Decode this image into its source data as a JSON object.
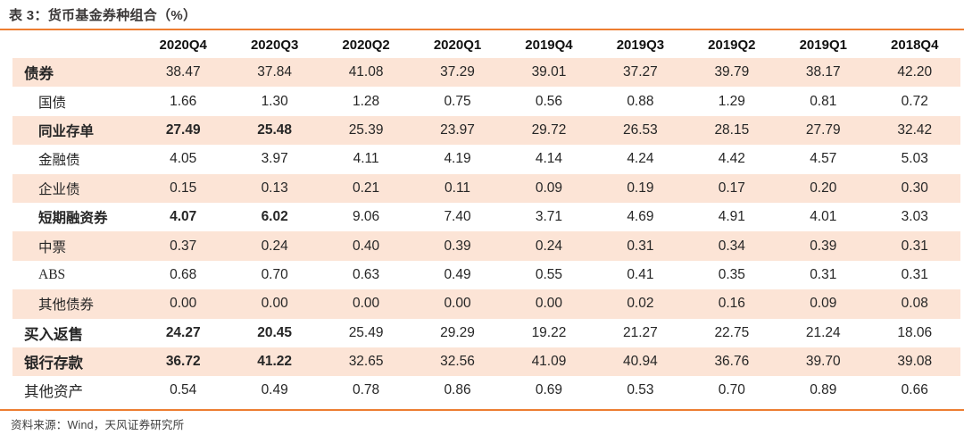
{
  "title": "表 3：货币基金券种组合（%）",
  "source_note": "资料来源：Wind，天风证券研究所",
  "colors": {
    "accent_orange": "#ED7D31",
    "row_highlight": "#FCE4D6",
    "header_text": "#111111",
    "body_text": "#262626",
    "title_text": "#3B3838"
  },
  "table": {
    "corner_label": "",
    "columns": [
      "2020Q4",
      "2020Q3",
      "2020Q2",
      "2020Q1",
      "2019Q4",
      "2019Q3",
      "2019Q2",
      "2019Q1",
      "2018Q4"
    ],
    "rows": [
      {
        "label": "债券",
        "level": "major",
        "bold_label": true,
        "serif_label": false,
        "highlight": true,
        "bold_value_count": 0,
        "values": [
          "38.47",
          "37.84",
          "41.08",
          "37.29",
          "39.01",
          "37.27",
          "39.79",
          "38.17",
          "42.20"
        ]
      },
      {
        "label": "国债",
        "level": "sub",
        "bold_label": false,
        "serif_label": false,
        "highlight": false,
        "bold_value_count": 0,
        "values": [
          "1.66",
          "1.30",
          "1.28",
          "0.75",
          "0.56",
          "0.88",
          "1.29",
          "0.81",
          "0.72"
        ]
      },
      {
        "label": "同业存单",
        "level": "sub",
        "bold_label": true,
        "serif_label": false,
        "highlight": true,
        "bold_value_count": 2,
        "values": [
          "27.49",
          "25.48",
          "25.39",
          "23.97",
          "29.72",
          "26.53",
          "28.15",
          "27.79",
          "32.42"
        ]
      },
      {
        "label": "金融债",
        "level": "sub",
        "bold_label": false,
        "serif_label": false,
        "highlight": false,
        "bold_value_count": 0,
        "values": [
          "4.05",
          "3.97",
          "4.11",
          "4.19",
          "4.14",
          "4.24",
          "4.42",
          "4.57",
          "5.03"
        ]
      },
      {
        "label": "企业债",
        "level": "sub",
        "bold_label": false,
        "serif_label": false,
        "highlight": true,
        "bold_value_count": 0,
        "values": [
          "0.15",
          "0.13",
          "0.21",
          "0.11",
          "0.09",
          "0.19",
          "0.17",
          "0.20",
          "0.30"
        ]
      },
      {
        "label": "短期融资券",
        "level": "sub",
        "bold_label": true,
        "serif_label": false,
        "highlight": false,
        "bold_value_count": 2,
        "values": [
          "4.07",
          "6.02",
          "9.06",
          "7.40",
          "3.71",
          "4.69",
          "4.91",
          "4.01",
          "3.03"
        ]
      },
      {
        "label": "中票",
        "level": "sub",
        "bold_label": false,
        "serif_label": false,
        "highlight": true,
        "bold_value_count": 0,
        "values": [
          "0.37",
          "0.24",
          "0.40",
          "0.39",
          "0.24",
          "0.31",
          "0.34",
          "0.39",
          "0.31"
        ]
      },
      {
        "label": "ABS",
        "level": "sub",
        "bold_label": false,
        "serif_label": true,
        "highlight": false,
        "bold_value_count": 0,
        "values": [
          "0.68",
          "0.70",
          "0.63",
          "0.49",
          "0.55",
          "0.41",
          "0.35",
          "0.31",
          "0.31"
        ]
      },
      {
        "label": "其他债券",
        "level": "sub",
        "bold_label": false,
        "serif_label": false,
        "highlight": true,
        "bold_value_count": 0,
        "values": [
          "0.00",
          "0.00",
          "0.00",
          "0.00",
          "0.00",
          "0.02",
          "0.16",
          "0.09",
          "0.08"
        ]
      },
      {
        "label": "买入返售",
        "level": "major",
        "bold_label": true,
        "serif_label": false,
        "highlight": false,
        "bold_value_count": 2,
        "values": [
          "24.27",
          "20.45",
          "25.49",
          "29.29",
          "19.22",
          "21.27",
          "22.75",
          "21.24",
          "18.06"
        ]
      },
      {
        "label": "银行存款",
        "level": "major",
        "bold_label": true,
        "serif_label": false,
        "highlight": true,
        "bold_value_count": 2,
        "values": [
          "36.72",
          "41.22",
          "32.65",
          "32.56",
          "41.09",
          "40.94",
          "36.76",
          "39.70",
          "39.08"
        ]
      },
      {
        "label": "其他资产",
        "level": "major",
        "bold_label": false,
        "serif_label": false,
        "highlight": false,
        "bold_value_count": 0,
        "values": [
          "0.54",
          "0.49",
          "0.78",
          "0.86",
          "0.69",
          "0.53",
          "0.70",
          "0.89",
          "0.66"
        ]
      }
    ]
  }
}
